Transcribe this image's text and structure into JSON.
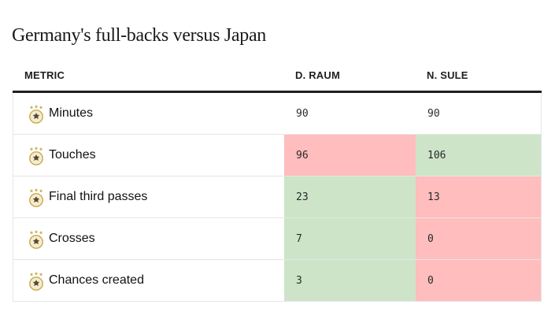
{
  "title": "Germany's full-backs versus Japan",
  "colors": {
    "better": "#cde4c8",
    "worse": "#ffbdbd",
    "neutral": "#ffffff"
  },
  "columns": {
    "metric": "METRIC",
    "player1": "D. RAUM",
    "player2": "N. SULE"
  },
  "badge_icon": "germany-crest-icon",
  "rows": [
    {
      "metric": "Minutes",
      "p1": "90",
      "p2": "90",
      "p1_status": "neutral",
      "p2_status": "neutral"
    },
    {
      "metric": "Touches",
      "p1": "96",
      "p2": "106",
      "p1_status": "worse",
      "p2_status": "better"
    },
    {
      "metric": "Final third passes",
      "p1": "23",
      "p2": "13",
      "p1_status": "better",
      "p2_status": "worse"
    },
    {
      "metric": "Crosses",
      "p1": "7",
      "p2": "0",
      "p1_status": "better",
      "p2_status": "worse"
    },
    {
      "metric": "Chances created",
      "p1": "3",
      "p2": "0",
      "p1_status": "better",
      "p2_status": "worse"
    }
  ]
}
